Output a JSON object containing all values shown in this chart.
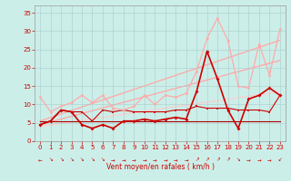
{
  "bg_color": "#cceee8",
  "grid_color": "#aacccc",
  "xlabel": "Vent moyen/en rafales ( km/h )",
  "xlabel_color": "#cc0000",
  "tick_color": "#cc0000",
  "ylabel_ticks": [
    0,
    5,
    10,
    15,
    20,
    25,
    30,
    35
  ],
  "xlabel_ticks": [
    0,
    1,
    2,
    3,
    4,
    5,
    6,
    7,
    8,
    9,
    10,
    11,
    12,
    13,
    14,
    15,
    16,
    17,
    18,
    19,
    20,
    21,
    22,
    23
  ],
  "xlim": [
    -0.5,
    23.5
  ],
  "ylim": [
    0,
    37
  ],
  "trend1": {
    "x": [
      0,
      23
    ],
    "y": [
      5.5,
      27.5
    ],
    "color": "#ffaaaa",
    "lw": 1.0
  },
  "trend2": {
    "x": [
      0,
      23
    ],
    "y": [
      4.5,
      22.0
    ],
    "color": "#ffaaaa",
    "lw": 1.0
  },
  "trend3": {
    "x": [
      0,
      23
    ],
    "y": [
      4.0,
      13.5
    ],
    "color": "#ffcccc",
    "lw": 0.8
  },
  "line_flat": {
    "x": [
      0,
      23
    ],
    "y": [
      5.5,
      5.5
    ],
    "color": "#aa0000",
    "lw": 0.8
  },
  "line_med": {
    "x": [
      0,
      1,
      2,
      3,
      4,
      5,
      6,
      7,
      8,
      9,
      10,
      11,
      12,
      13,
      14,
      15,
      16,
      17,
      18,
      19,
      20,
      21,
      22,
      23
    ],
    "y": [
      4.5,
      5.5,
      8.5,
      8.0,
      8.0,
      5.5,
      8.5,
      8.0,
      8.5,
      8.0,
      8.0,
      8.0,
      8.0,
      8.5,
      8.5,
      9.5,
      9.0,
      9.0,
      9.0,
      8.5,
      8.5,
      8.5,
      8.0,
      12.5
    ],
    "color": "#cc0000",
    "lw": 0.8,
    "marker": "s",
    "ms": 1.8
  },
  "line_strong": {
    "x": [
      0,
      1,
      2,
      3,
      4,
      5,
      6,
      7,
      8,
      9,
      10,
      11,
      12,
      13,
      14,
      15,
      16,
      17,
      18,
      19,
      20,
      21,
      22,
      23
    ],
    "y": [
      4.5,
      5.5,
      8.5,
      8.0,
      4.5,
      3.5,
      4.5,
      3.5,
      5.5,
      5.5,
      6.0,
      5.5,
      6.0,
      6.5,
      6.0,
      13.5,
      24.5,
      17.0,
      8.5,
      3.5,
      11.5,
      12.5,
      14.5,
      12.5
    ],
    "color": "#cc0000",
    "lw": 1.2,
    "marker": "D",
    "ms": 2.0
  },
  "line_gusts": {
    "x": [
      0,
      1,
      2,
      3,
      4,
      5,
      6,
      7,
      8,
      9,
      10,
      11,
      12,
      13,
      14,
      15,
      16,
      17,
      18,
      19,
      20,
      21,
      22,
      23
    ],
    "y": [
      12.0,
      8.0,
      9.5,
      10.5,
      12.5,
      10.5,
      12.5,
      9.0,
      8.5,
      9.5,
      12.5,
      10.0,
      12.5,
      12.0,
      13.0,
      19.0,
      28.0,
      33.5,
      27.5,
      15.0,
      14.5,
      26.5,
      18.0,
      30.5
    ],
    "color": "#ffaaaa",
    "lw": 0.9,
    "marker": "o",
    "ms": 2.0
  },
  "arrow_symbols": [
    "←",
    "↘",
    "↘",
    "↘",
    "↘",
    "↘",
    "↘",
    "→",
    "→",
    "→",
    "→",
    "→",
    "→",
    "→",
    "→",
    "↗",
    "↗",
    "↗",
    "↗",
    "↘",
    "→",
    "→",
    "→",
    "↙"
  ],
  "arrow_color": "#cc0000",
  "figsize": [
    3.2,
    2.0
  ],
  "dpi": 100
}
